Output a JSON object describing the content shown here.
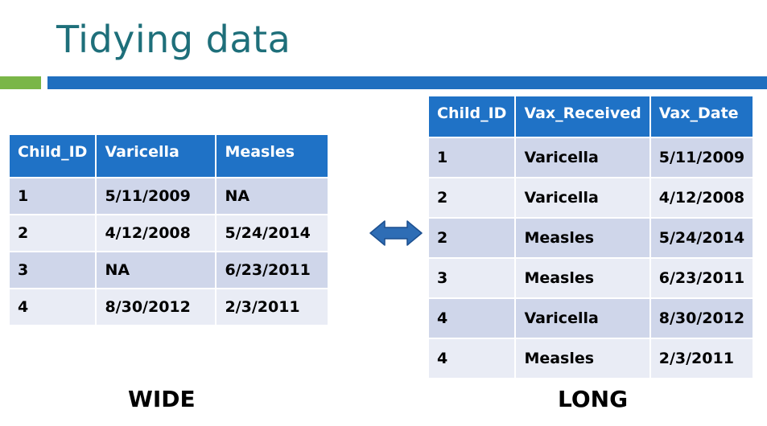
{
  "title": "Tidying data",
  "colors": {
    "title": "#1e6f7a",
    "rule_green": "#7ab648",
    "rule_blue": "#1f6fbf",
    "header_bg": "#1f72c6",
    "row_odd": "#cfd6ea",
    "row_even": "#e9ecf5",
    "arrow": "#2e6db5"
  },
  "wide_table": {
    "headers": [
      "Child_ID",
      "Varicella",
      "Measles"
    ],
    "rows": [
      [
        "1",
        "5/11/2009",
        "NA"
      ],
      [
        "2",
        "4/12/2008",
        "5/24/2014"
      ],
      [
        "3",
        "NA",
        "6/23/2011"
      ],
      [
        "4",
        "8/30/2012",
        "2/3/2011"
      ]
    ]
  },
  "long_table": {
    "headers": [
      "Child_ID",
      "Vax_Received",
      "Vax_Date"
    ],
    "rows": [
      [
        "1",
        "Varicella",
        "5/11/2009"
      ],
      [
        "2",
        "Varicella",
        "4/12/2008"
      ],
      [
        "2",
        "Measles",
        "5/24/2014"
      ],
      [
        "3",
        "Measles",
        "6/23/2011"
      ],
      [
        "4",
        "Varicella",
        "8/30/2012"
      ],
      [
        "4",
        "Measles",
        "2/3/2011"
      ]
    ]
  },
  "arrow_icon": "double-headed-arrow-icon",
  "captions": {
    "wide": "WIDE",
    "long": "LONG"
  }
}
